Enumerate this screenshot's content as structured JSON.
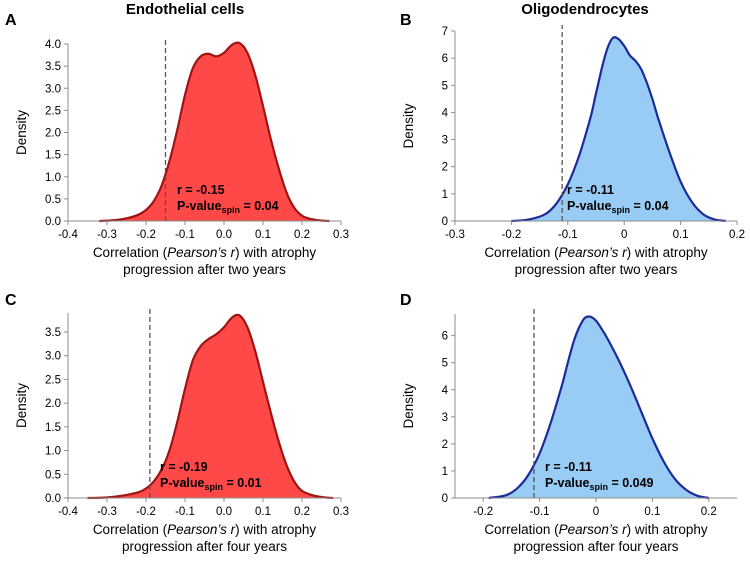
{
  "figure": {
    "panels_label": "Density distributions of spatial correlations"
  },
  "chart_data": [
    {
      "type": "area",
      "letter": "A",
      "title": "Endothelial cells",
      "ylabel": "Density",
      "xlabel": {
        "pre": "Correlation (",
        "italic": "Pearson’s r",
        "post": ") with atrophy",
        "line2": "progression after two years"
      },
      "xlim": [
        -0.4,
        0.3
      ],
      "ylim": [
        0,
        4.0
      ],
      "xticks": [
        "-0.4",
        "-0.3",
        "-0.2",
        "-0.1",
        "0.0",
        "0.1",
        "0.2",
        "0.3"
      ],
      "xtick_values": [
        -0.4,
        -0.3,
        -0.2,
        -0.1,
        0.0,
        0.1,
        0.2,
        0.3
      ],
      "yticks": [
        "0.0",
        "0.5",
        "1.0",
        "1.5",
        "2.0",
        "2.5",
        "3.0",
        "3.5",
        "4.0"
      ],
      "ytick_values": [
        0,
        0.5,
        1.0,
        1.5,
        2.0,
        2.5,
        3.0,
        3.5,
        4.0
      ],
      "density_x": [
        -0.32,
        -0.28,
        -0.25,
        -0.22,
        -0.2,
        -0.18,
        -0.16,
        -0.14,
        -0.12,
        -0.1,
        -0.08,
        -0.06,
        -0.04,
        -0.02,
        0.0,
        0.02,
        0.04,
        0.06,
        0.08,
        0.1,
        0.12,
        0.14,
        0.16,
        0.18,
        0.2,
        0.22,
        0.25,
        0.27
      ],
      "density_y": [
        0.0,
        0.02,
        0.06,
        0.14,
        0.25,
        0.45,
        0.8,
        1.35,
        2.05,
        2.85,
        3.45,
        3.72,
        3.78,
        3.72,
        3.8,
        3.98,
        4.02,
        3.8,
        3.3,
        2.6,
        1.85,
        1.2,
        0.65,
        0.3,
        0.12,
        0.05,
        0.01,
        0.0
      ],
      "observed_r": -0.15,
      "stat_r": "r = -0.15",
      "stat_p_label": "P-value",
      "stat_p_sub": "spin",
      "stat_p_value": "=  0.04",
      "fill": "#ff4848",
      "stroke": "#a01414"
    },
    {
      "type": "area",
      "letter": "B",
      "title": "Oligodendrocytes",
      "ylabel": "Density",
      "xlabel": {
        "pre": "Correlation (",
        "italic": "Pearson’s r",
        "post": ") with atrophy",
        "line2": "progression after two years"
      },
      "xlim": [
        -0.3,
        0.2
      ],
      "ylim": [
        0,
        7
      ],
      "xticks": [
        "-0.3",
        "-0.2",
        "-0.1",
        "0",
        "0.1",
        "0.2"
      ],
      "xtick_values": [
        -0.3,
        -0.2,
        -0.1,
        0,
        0.1,
        0.2
      ],
      "yticks": [
        "0",
        "1",
        "2",
        "3",
        "4",
        "5",
        "6",
        "7"
      ],
      "ytick_values": [
        0,
        1,
        2,
        3,
        4,
        5,
        6,
        7
      ],
      "density_x": [
        -0.2,
        -0.17,
        -0.14,
        -0.12,
        -0.1,
        -0.08,
        -0.06,
        -0.05,
        -0.04,
        -0.03,
        -0.02,
        -0.01,
        0.0,
        0.01,
        0.02,
        0.03,
        0.04,
        0.05,
        0.06,
        0.08,
        0.1,
        0.12,
        0.14,
        0.16,
        0.18
      ],
      "density_y": [
        0.0,
        0.05,
        0.25,
        0.65,
        1.35,
        2.4,
        3.8,
        4.7,
        5.6,
        6.35,
        6.75,
        6.7,
        6.45,
        6.1,
        5.9,
        5.6,
        5.1,
        4.5,
        3.8,
        2.55,
        1.45,
        0.7,
        0.25,
        0.06,
        0.0
      ],
      "observed_r": -0.11,
      "stat_r": "r = -0.11",
      "stat_p_label": "P-value",
      "stat_p_sub": "spin",
      "stat_p_value": "=  0.04",
      "fill": "#99ccf5",
      "stroke": "#1c2a9c"
    },
    {
      "type": "area",
      "letter": "C",
      "title": "",
      "ylabel": "Density",
      "xlabel": {
        "pre": "Correlation (",
        "italic": "Pearson’s r",
        "post": ") with atrophy",
        "line2": "progression after four years"
      },
      "xlim": [
        -0.4,
        0.3
      ],
      "ylim": [
        0,
        3.9
      ],
      "xticks": [
        "-0.4",
        "-0.3",
        "-0.2",
        "-0.1",
        "0.0",
        "0.1",
        "0.2",
        "0.3"
      ],
      "xtick_values": [
        -0.4,
        -0.3,
        -0.2,
        -0.1,
        0.0,
        0.1,
        0.2,
        0.3
      ],
      "yticks": [
        "0.0",
        "0.5",
        "1.0",
        "1.5",
        "2.0",
        "2.5",
        "3.0",
        "3.5"
      ],
      "ytick_values": [
        0,
        0.5,
        1.0,
        1.5,
        2.0,
        2.5,
        3.0,
        3.5
      ],
      "density_x": [
        -0.35,
        -0.3,
        -0.26,
        -0.22,
        -0.2,
        -0.18,
        -0.16,
        -0.14,
        -0.12,
        -0.1,
        -0.08,
        -0.06,
        -0.04,
        -0.02,
        0.0,
        0.02,
        0.04,
        0.06,
        0.08,
        0.1,
        0.12,
        0.14,
        0.16,
        0.18,
        0.2,
        0.23,
        0.26,
        0.28
      ],
      "density_y": [
        0.0,
        0.01,
        0.05,
        0.12,
        0.2,
        0.35,
        0.6,
        1.0,
        1.6,
        2.3,
        2.9,
        3.2,
        3.35,
        3.45,
        3.6,
        3.8,
        3.85,
        3.6,
        3.1,
        2.45,
        1.8,
        1.2,
        0.7,
        0.35,
        0.15,
        0.05,
        0.01,
        0.0
      ],
      "observed_r": -0.19,
      "stat_r": "r = -0.19",
      "stat_p_label": "P-value",
      "stat_p_sub": "spin",
      "stat_p_value": "=  0.01",
      "fill": "#ff4848",
      "stroke": "#a01414"
    },
    {
      "type": "area",
      "letter": "D",
      "title": "",
      "ylabel": "Density",
      "xlabel": {
        "pre": "Correlation (",
        "italic": "Pearson’s r",
        "post": ") with atrophy",
        "line2": "progression after four years"
      },
      "xlim": [
        -0.25,
        0.25
      ],
      "ylim": [
        0,
        6.8
      ],
      "xticks": [
        "-0.2",
        "-0.1",
        "0",
        "0.1",
        "0.2"
      ],
      "xtick_values": [
        -0.2,
        -0.1,
        0,
        0.1,
        0.2
      ],
      "yticks": [
        "0",
        "1",
        "2",
        "3",
        "4",
        "5",
        "6"
      ],
      "ytick_values": [
        0,
        1,
        2,
        3,
        4,
        5,
        6
      ],
      "density_x": [
        -0.19,
        -0.16,
        -0.14,
        -0.12,
        -0.1,
        -0.08,
        -0.06,
        -0.05,
        -0.04,
        -0.03,
        -0.02,
        -0.01,
        0.0,
        0.01,
        0.02,
        0.04,
        0.06,
        0.08,
        0.1,
        0.12,
        0.14,
        0.16,
        0.18,
        0.2
      ],
      "density_y": [
        0.0,
        0.1,
        0.35,
        0.85,
        1.65,
        2.8,
        4.2,
        5.0,
        5.75,
        6.3,
        6.65,
        6.7,
        6.55,
        6.25,
        5.9,
        5.1,
        4.2,
        3.2,
        2.2,
        1.35,
        0.7,
        0.3,
        0.08,
        0.0
      ],
      "observed_r": -0.11,
      "stat_r": "r = -0.11",
      "stat_p_label": "P-value",
      "stat_p_sub": "spin",
      "stat_p_value": "=  0.049",
      "fill": "#99ccf5",
      "stroke": "#1c2a9c"
    }
  ]
}
